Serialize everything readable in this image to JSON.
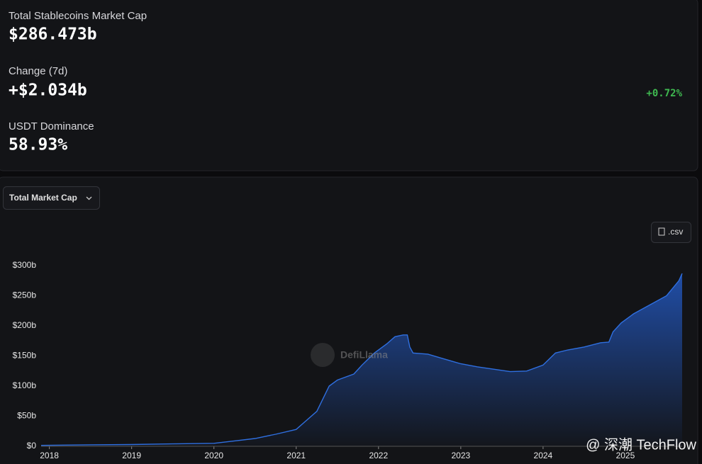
{
  "stats": [
    {
      "label": "Total Stablecoins Market Cap",
      "value": "$286.473b"
    },
    {
      "label": "Change (7d)",
      "value": "+$2.034b",
      "extra": "+0.72%"
    },
    {
      "label": "USDT Dominance",
      "value": "58.93%"
    }
  ],
  "dropdown": "Total Market Cap",
  "csv_button": ".csv",
  "watermark": "DefiLlama",
  "footer_watermark": "@ 深潮 TechFlow",
  "chart_data": {
    "type": "area",
    "color": "#2f6fe0",
    "x": [
      2017.9,
      2018.5,
      2019.0,
      2019.5,
      2020.0,
      2020.25,
      2020.5,
      2020.75,
      2021.0,
      2021.1,
      2021.25,
      2021.4,
      2021.5,
      2021.7,
      2021.8,
      2021.95,
      2022.1,
      2022.2,
      2022.3,
      2022.35,
      2022.38,
      2022.42,
      2022.6,
      2022.8,
      2023.0,
      2023.2,
      2023.4,
      2023.6,
      2023.8,
      2024.0,
      2024.15,
      2024.3,
      2024.5,
      2024.7,
      2024.8,
      2024.85,
      2024.95,
      2025.1,
      2025.3,
      2025.5,
      2025.65,
      2025.69
    ],
    "values": [
      1.5,
      2.5,
      3,
      4,
      5,
      9,
      13,
      20,
      28,
      40,
      58,
      100,
      110,
      120,
      135,
      155,
      170,
      182,
      185,
      185,
      165,
      155,
      153,
      145,
      137,
      132,
      128,
      124,
      125,
      135,
      155,
      160,
      165,
      172,
      173,
      190,
      205,
      220,
      235,
      250,
      275,
      287
    ],
    "xlim": [
      2017.9,
      2025.69
    ],
    "xticks": [
      2018,
      2019,
      2020,
      2021,
      2022,
      2023,
      2024,
      2025
    ],
    "ylim": [
      0,
      300
    ],
    "yticks": [
      {
        "value": 0,
        "label": "$0"
      },
      {
        "value": 50,
        "label": "$50b"
      },
      {
        "value": 100,
        "label": "$100b"
      },
      {
        "value": 150,
        "label": "$150b"
      },
      {
        "value": 200,
        "label": "$200b"
      },
      {
        "value": 250,
        "label": "$250b"
      },
      {
        "value": 300,
        "label": "$300b"
      }
    ]
  }
}
